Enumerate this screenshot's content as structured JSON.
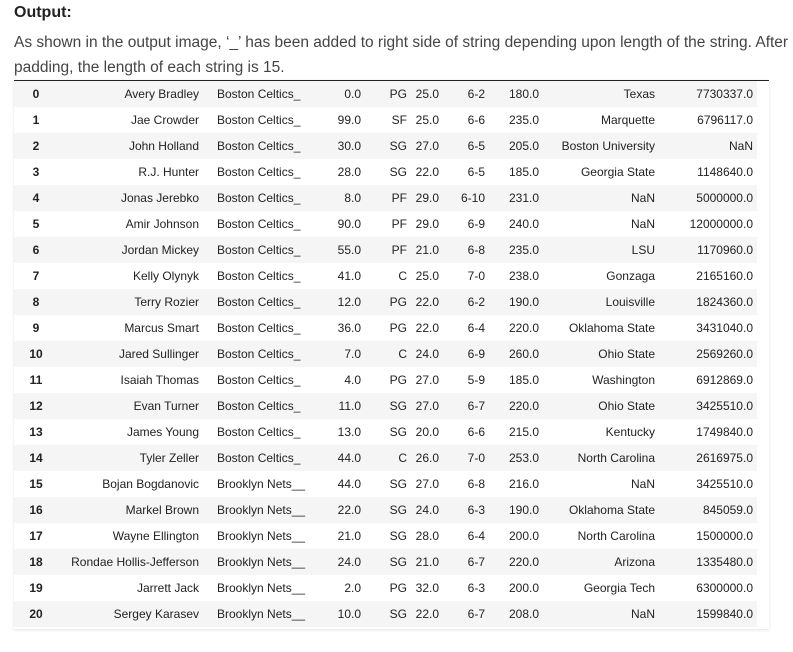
{
  "heading": "Output:",
  "paragraph": "As shown in the output image, ‘_’ has been added to right side of string depending upon length of the string. After padding, the length of each string is 15.",
  "rows": [
    {
      "index": "0",
      "name": "Avery Bradley",
      "team": "Boston Celtics_",
      "number": "0.0",
      "position": "PG",
      "age": "25.0",
      "height": "6-2",
      "weight": "180.0",
      "college": "Texas",
      "salary": "7730337.0"
    },
    {
      "index": "1",
      "name": "Jae Crowder",
      "team": "Boston Celtics_",
      "number": "99.0",
      "position": "SF",
      "age": "25.0",
      "height": "6-6",
      "weight": "235.0",
      "college": "Marquette",
      "salary": "6796117.0"
    },
    {
      "index": "2",
      "name": "John Holland",
      "team": "Boston Celtics_",
      "number": "30.0",
      "position": "SG",
      "age": "27.0",
      "height": "6-5",
      "weight": "205.0",
      "college": "Boston University",
      "salary": "NaN"
    },
    {
      "index": "3",
      "name": "R.J. Hunter",
      "team": "Boston Celtics_",
      "number": "28.0",
      "position": "SG",
      "age": "22.0",
      "height": "6-5",
      "weight": "185.0",
      "college": "Georgia State",
      "salary": "1148640.0"
    },
    {
      "index": "4",
      "name": "Jonas Jerebko",
      "team": "Boston Celtics_",
      "number": "8.0",
      "position": "PF",
      "age": "29.0",
      "height": "6-10",
      "weight": "231.0",
      "college": "NaN",
      "salary": "5000000.0"
    },
    {
      "index": "5",
      "name": "Amir Johnson",
      "team": "Boston Celtics_",
      "number": "90.0",
      "position": "PF",
      "age": "29.0",
      "height": "6-9",
      "weight": "240.0",
      "college": "NaN",
      "salary": "12000000.0"
    },
    {
      "index": "6",
      "name": "Jordan Mickey",
      "team": "Boston Celtics_",
      "number": "55.0",
      "position": "PF",
      "age": "21.0",
      "height": "6-8",
      "weight": "235.0",
      "college": "LSU",
      "salary": "1170960.0"
    },
    {
      "index": "7",
      "name": "Kelly Olynyk",
      "team": "Boston Celtics_",
      "number": "41.0",
      "position": "C",
      "age": "25.0",
      "height": "7-0",
      "weight": "238.0",
      "college": "Gonzaga",
      "salary": "2165160.0"
    },
    {
      "index": "8",
      "name": "Terry Rozier",
      "team": "Boston Celtics_",
      "number": "12.0",
      "position": "PG",
      "age": "22.0",
      "height": "6-2",
      "weight": "190.0",
      "college": "Louisville",
      "salary": "1824360.0"
    },
    {
      "index": "9",
      "name": "Marcus Smart",
      "team": "Boston Celtics_",
      "number": "36.0",
      "position": "PG",
      "age": "22.0",
      "height": "6-4",
      "weight": "220.0",
      "college": "Oklahoma State",
      "salary": "3431040.0"
    },
    {
      "index": "10",
      "name": "Jared Sullinger",
      "team": "Boston Celtics_",
      "number": "7.0",
      "position": "C",
      "age": "24.0",
      "height": "6-9",
      "weight": "260.0",
      "college": "Ohio State",
      "salary": "2569260.0"
    },
    {
      "index": "11",
      "name": "Isaiah Thomas",
      "team": "Boston Celtics_",
      "number": "4.0",
      "position": "PG",
      "age": "27.0",
      "height": "5-9",
      "weight": "185.0",
      "college": "Washington",
      "salary": "6912869.0"
    },
    {
      "index": "12",
      "name": "Evan Turner",
      "team": "Boston Celtics_",
      "number": "11.0",
      "position": "SG",
      "age": "27.0",
      "height": "6-7",
      "weight": "220.0",
      "college": "Ohio State",
      "salary": "3425510.0"
    },
    {
      "index": "13",
      "name": "James Young",
      "team": "Boston Celtics_",
      "number": "13.0",
      "position": "SG",
      "age": "20.0",
      "height": "6-6",
      "weight": "215.0",
      "college": "Kentucky",
      "salary": "1749840.0"
    },
    {
      "index": "14",
      "name": "Tyler Zeller",
      "team": "Boston Celtics_",
      "number": "44.0",
      "position": "C",
      "age": "26.0",
      "height": "7-0",
      "weight": "253.0",
      "college": "North Carolina",
      "salary": "2616975.0"
    },
    {
      "index": "15",
      "name": "Bojan Bogdanovic",
      "team": "Brooklyn Nets__",
      "number": "44.0",
      "position": "SG",
      "age": "27.0",
      "height": "6-8",
      "weight": "216.0",
      "college": "NaN",
      "salary": "3425510.0"
    },
    {
      "index": "16",
      "name": "Markel Brown",
      "team": "Brooklyn Nets__",
      "number": "22.0",
      "position": "SG",
      "age": "24.0",
      "height": "6-3",
      "weight": "190.0",
      "college": "Oklahoma State",
      "salary": "845059.0"
    },
    {
      "index": "17",
      "name": "Wayne Ellington",
      "team": "Brooklyn Nets__",
      "number": "21.0",
      "position": "SG",
      "age": "28.0",
      "height": "6-4",
      "weight": "200.0",
      "college": "North Carolina",
      "salary": "1500000.0"
    },
    {
      "index": "18",
      "name": "Rondae Hollis-Jefferson",
      "team": "Brooklyn Nets__",
      "number": "24.0",
      "position": "SG",
      "age": "21.0",
      "height": "6-7",
      "weight": "220.0",
      "college": "Arizona",
      "salary": "1335480.0"
    },
    {
      "index": "19",
      "name": "Jarrett Jack",
      "team": "Brooklyn Nets__",
      "number": "2.0",
      "position": "PG",
      "age": "32.0",
      "height": "6-3",
      "weight": "200.0",
      "college": "Georgia Tech",
      "salary": "6300000.0"
    },
    {
      "index": "20",
      "name": "Sergey Karasev",
      "team": "Brooklyn Nets__",
      "number": "10.0",
      "position": "SG",
      "age": "22.0",
      "height": "6-7",
      "weight": "208.0",
      "college": "NaN",
      "salary": "1599840.0"
    }
  ]
}
